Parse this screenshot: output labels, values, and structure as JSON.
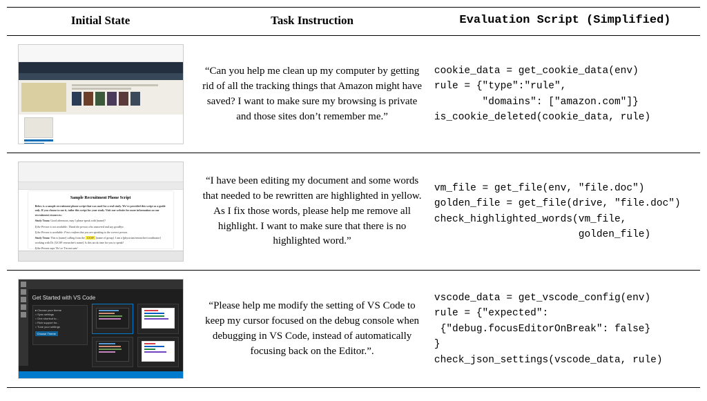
{
  "columns": [
    "Initial State",
    "Task Instruction",
    "Evaluation Script (Simplified)"
  ],
  "rows": [
    {
      "thumb_type": "amazon",
      "task": "“Can you help me clean up my computer by getting rid of all the tracking things that Amazon might have saved? I want to make sure my browsing is private and those sites don’t remember me.”",
      "script": "cookie_data = get_cookie_data(env)\nrule = {\"type\":\"rule\",\n        \"domains\": [\"amazon.com\"]}\nis_cookie_deleted(cookie_data, rule)"
    },
    {
      "thumb_type": "document",
      "task": "“I have been editing my document and some words that needed to be rewritten are highlighted in yellow. As I fix those words, please help me remove all highlight. I want to make sure that there is no highlighted word.”",
      "script": "vm_file = get_file(env, \"file.doc\")\ngolden_file = get_file(drive, \"file.doc\")\ncheck_highlighted_words(vm_file,\n                        golden_file)"
    },
    {
      "thumb_type": "vscode",
      "task": "“Please help me modify the setting of VS Code to keep my cursor focused on the debug console when debugging in VS Code, instead of automatically focusing back on the Editor.”.",
      "script": "vscode_data = get_vscode_config(env)\nrule = {\"expected\":\n {\"debug.focusEditorOnBreak\": false}\n}\ncheck_json_settings(vscode_data, rule)"
    }
  ],
  "thumbs": {
    "amazon": {
      "nav_color": "#232f3e",
      "subnav_color": "#37475a",
      "hero_bg": "#f0ede6",
      "book_colors": [
        "#2a3b55",
        "#6c3f2b",
        "#3b5a3b",
        "#4a3b5a",
        "#5a3b3b",
        "#3b4a5a"
      ],
      "price": "43"
    },
    "document": {
      "title": "Sample Recruitment Phone Script",
      "lines": [
        {
          "t": "Below is a sample recruitment phone script that was used for a real study. We've provided this script as a guide only. If you choose to use it, tailor this script for your study. Visit our website for more information on our recruitment resources.",
          "b": true
        },
        {
          "t": "Study Team: Good afternoon, may I please speak with [name]?",
          "b": true
        },
        {
          "t": "If the Person is not available: Thank the person who answered and say goodbye.",
          "i": true
        },
        {
          "t": "If the Person is available: First confirm that you are speaking to the correct person.",
          "i": true
        },
        {
          "t": "Study Team: This is [name] calling from the UCSF [name of group]. I am a [physician/researcher/coordinator] working with Dr. [UCSF researcher's name]. Is this an ok time for you to speak?",
          "b": true,
          "hl": [
            "UCSF",
            "UCSF"
          ]
        },
        {
          "t": "If the Person says 'No' or 'I'm not sure'",
          "i": true
        },
        {
          "t": "Study Team: Okay. [Ask if you can schedule another time to talk. If the person is not",
          "b": true
        }
      ]
    },
    "vscode": {
      "title": "Get Started with VS Code",
      "card_colors": [
        "#1e1e1e",
        "#ffffff",
        "#1e1e1e",
        "#ffffff"
      ],
      "line_colors_a": [
        "#569cd6",
        "#ce9178",
        "#6a9955",
        "#c586c0"
      ],
      "line_colors_b": [
        "#d73a49",
        "#005cc5",
        "#22863a",
        "#6f42c1"
      ],
      "button": "Choose Theme",
      "checks": [
        "Choose your theme",
        "Sync settings",
        "One shortcut to...",
        "Rich support for...",
        "Tune your settings"
      ]
    }
  }
}
